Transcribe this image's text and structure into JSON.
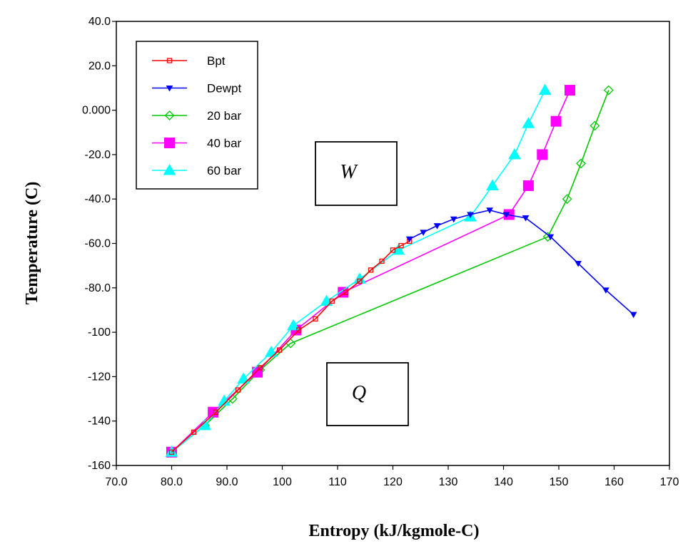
{
  "chart_data": {
    "type": "line",
    "title": "",
    "xlabel": "Entropy (kJ/kgmole-C)",
    "ylabel": "Temperature (C)",
    "xlim": [
      70,
      170
    ],
    "ylim": [
      -160,
      40
    ],
    "x_ticks": [
      {
        "value": 70,
        "label": "70.0"
      },
      {
        "value": 80,
        "label": "80.0"
      },
      {
        "value": 90,
        "label": "90.0"
      },
      {
        "value": 100,
        "label": "100"
      },
      {
        "value": 110,
        "label": "110"
      },
      {
        "value": 120,
        "label": "120"
      },
      {
        "value": 130,
        "label": "130"
      },
      {
        "value": 140,
        "label": "140"
      },
      {
        "value": 150,
        "label": "150"
      },
      {
        "value": 160,
        "label": "160"
      },
      {
        "value": 170,
        "label": "170"
      }
    ],
    "y_ticks": [
      {
        "value": 40,
        "label": "40.0"
      },
      {
        "value": 20,
        "label": "20.0"
      },
      {
        "value": 0,
        "label": "0.000"
      },
      {
        "value": -20,
        "label": "-20.0"
      },
      {
        "value": -40,
        "label": "-40.0"
      },
      {
        "value": -60,
        "label": "-60.0"
      },
      {
        "value": -80,
        "label": "-80.0"
      },
      {
        "value": -100,
        "label": "-100"
      },
      {
        "value": -120,
        "label": "-120"
      },
      {
        "value": -140,
        "label": "-140"
      },
      {
        "value": -160,
        "label": "-160"
      }
    ],
    "grid": false,
    "legend_position": "top-left",
    "series": [
      {
        "name": "Bpt",
        "color": "#ff0000",
        "marker": "open-square",
        "points": [
          [
            80,
            -154
          ],
          [
            84,
            -145
          ],
          [
            88,
            -136
          ],
          [
            92,
            -126
          ],
          [
            96,
            -116
          ],
          [
            99.5,
            -108
          ],
          [
            103,
            -99
          ],
          [
            106,
            -94
          ],
          [
            109,
            -86
          ],
          [
            111.5,
            -82
          ],
          [
            114,
            -77
          ],
          [
            116,
            -72
          ],
          [
            118,
            -68
          ],
          [
            120,
            -63
          ],
          [
            121.5,
            -61
          ],
          [
            123,
            -59
          ]
        ]
      },
      {
        "name": "Dewpt",
        "color": "#0000ff",
        "marker": "down-triangle",
        "points": [
          [
            123,
            -58
          ],
          [
            125.5,
            -55
          ],
          [
            128,
            -52
          ],
          [
            131,
            -49
          ],
          [
            134,
            -47
          ],
          [
            137.5,
            -45
          ],
          [
            140.5,
            -47
          ],
          [
            144,
            -48.5
          ],
          [
            148.5,
            -57
          ],
          [
            153.5,
            -69
          ],
          [
            158.5,
            -81
          ],
          [
            163.5,
            -92
          ]
        ]
      },
      {
        "name": "20 bar",
        "color": "#00c800",
        "marker": "open-diamond",
        "points": [
          [
            80,
            -154
          ],
          [
            86,
            -142
          ],
          [
            91,
            -130
          ],
          [
            96,
            -117
          ],
          [
            101.5,
            -105
          ],
          [
            148,
            -57
          ],
          [
            151.5,
            -40
          ],
          [
            154,
            -24
          ],
          [
            156.5,
            -7
          ],
          [
            159,
            9
          ]
        ]
      },
      {
        "name": "40 bar",
        "color": "#ff00ff",
        "marker": "filled-square",
        "points": [
          [
            80,
            -154
          ],
          [
            87.5,
            -136
          ],
          [
            95.5,
            -118
          ],
          [
            102.5,
            -99
          ],
          [
            111,
            -82
          ],
          [
            141,
            -47
          ],
          [
            144.5,
            -34
          ],
          [
            147,
            -20
          ],
          [
            149.5,
            -5
          ],
          [
            152,
            9
          ]
        ]
      },
      {
        "name": "60 bar",
        "color": "#00ffff",
        "marker": "filled-triangle",
        "points": [
          [
            80,
            -154
          ],
          [
            86,
            -142
          ],
          [
            89.5,
            -131
          ],
          [
            93,
            -121
          ],
          [
            98,
            -109
          ],
          [
            102,
            -97
          ],
          [
            108,
            -86
          ],
          [
            114,
            -76
          ],
          [
            121,
            -63
          ],
          [
            134,
            -48
          ],
          [
            138,
            -34
          ],
          [
            142,
            -20
          ],
          [
            144.5,
            -6
          ],
          [
            147.5,
            9
          ]
        ]
      }
    ]
  },
  "annotations": {
    "box_w": "W",
    "box_q": "Q"
  }
}
